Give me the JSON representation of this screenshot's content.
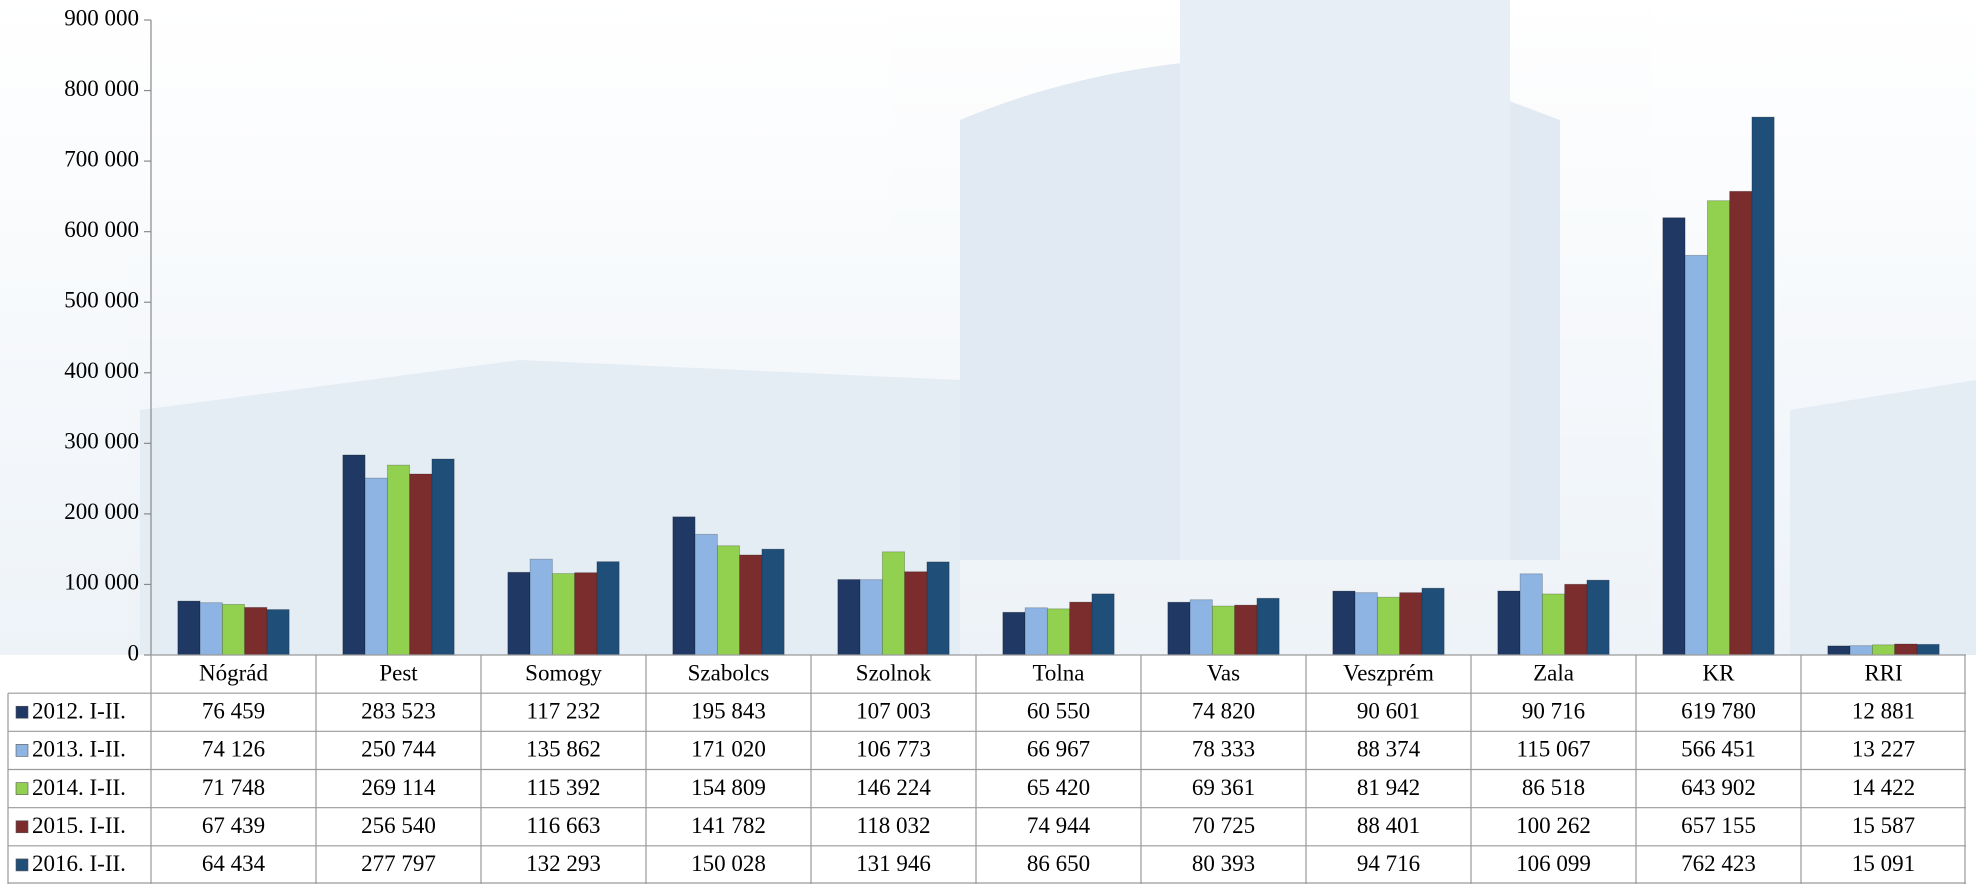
{
  "chart_data": {
    "type": "bar",
    "categories": [
      "Nógrád",
      "Pest",
      "Somogy",
      "Szabolcs",
      "Szolnok",
      "Tolna",
      "Vas",
      "Veszprém",
      "Zala",
      "KR",
      "RRI"
    ],
    "series": [
      {
        "name": "2012. I-II.",
        "color": "#1f3864",
        "values": [
          76459,
          283523,
          117232,
          195843,
          107003,
          60550,
          74820,
          90601,
          90716,
          619780,
          12881
        ],
        "value_labels": [
          "76 459",
          "283 523",
          "117 232",
          "195 843",
          "107 003",
          "60 550",
          "74 820",
          "90 601",
          "90 716",
          "619 780",
          "12 881"
        ]
      },
      {
        "name": "2013. I-II.",
        "color": "#8db4e2",
        "values": [
          74126,
          250744,
          135862,
          171020,
          106773,
          66967,
          78333,
          88374,
          115067,
          566451,
          13227
        ],
        "value_labels": [
          "74 126",
          "250 744",
          "135 862",
          "171 020",
          "106 773",
          "66 967",
          "78 333",
          "88 374",
          "115 067",
          "566 451",
          "13 227"
        ]
      },
      {
        "name": "2014. I-II.",
        "color": "#92d050",
        "values": [
          71748,
          269114,
          115392,
          154809,
          146224,
          65420,
          69361,
          81942,
          86518,
          643902,
          14422
        ],
        "value_labels": [
          "71 748",
          "269 114",
          "115 392",
          "154 809",
          "146 224",
          "65 420",
          "69 361",
          "81 942",
          "86 518",
          "643 902",
          "14 422"
        ]
      },
      {
        "name": "2015. I-II.",
        "color": "#7b2c2c",
        "values": [
          67439,
          256540,
          116663,
          141782,
          118032,
          74944,
          70725,
          88401,
          100262,
          657155,
          15587
        ],
        "value_labels": [
          "67 439",
          "256 540",
          "116 663",
          "141 782",
          "118 032",
          "74 944",
          "70 725",
          "88 401",
          "100 262",
          "657 155",
          "15 587"
        ]
      },
      {
        "name": "2016. I-II.",
        "color": "#1f4e79",
        "values": [
          64434,
          277797,
          132293,
          150028,
          131946,
          86650,
          80393,
          94716,
          106099,
          762423,
          15091
        ],
        "value_labels": [
          "64 434",
          "277 797",
          "132 293",
          "150 028",
          "131 946",
          "86 650",
          "80 393",
          "94 716",
          "106 099",
          "762 423",
          "15 091"
        ]
      }
    ],
    "ylim": [
      0,
      900000
    ],
    "yticks": [
      {
        "value": 0,
        "label": "0"
      },
      {
        "value": 100000,
        "label": "100 000"
      },
      {
        "value": 200000,
        "label": "200 000"
      },
      {
        "value": 300000,
        "label": "300 000"
      },
      {
        "value": 400000,
        "label": "400 000"
      },
      {
        "value": 500000,
        "label": "500 000"
      },
      {
        "value": 600000,
        "label": "600 000"
      },
      {
        "value": 700000,
        "label": "700 000"
      },
      {
        "value": 800000,
        "label": "800 000"
      },
      {
        "value": 900000,
        "label": "900 000"
      }
    ]
  }
}
